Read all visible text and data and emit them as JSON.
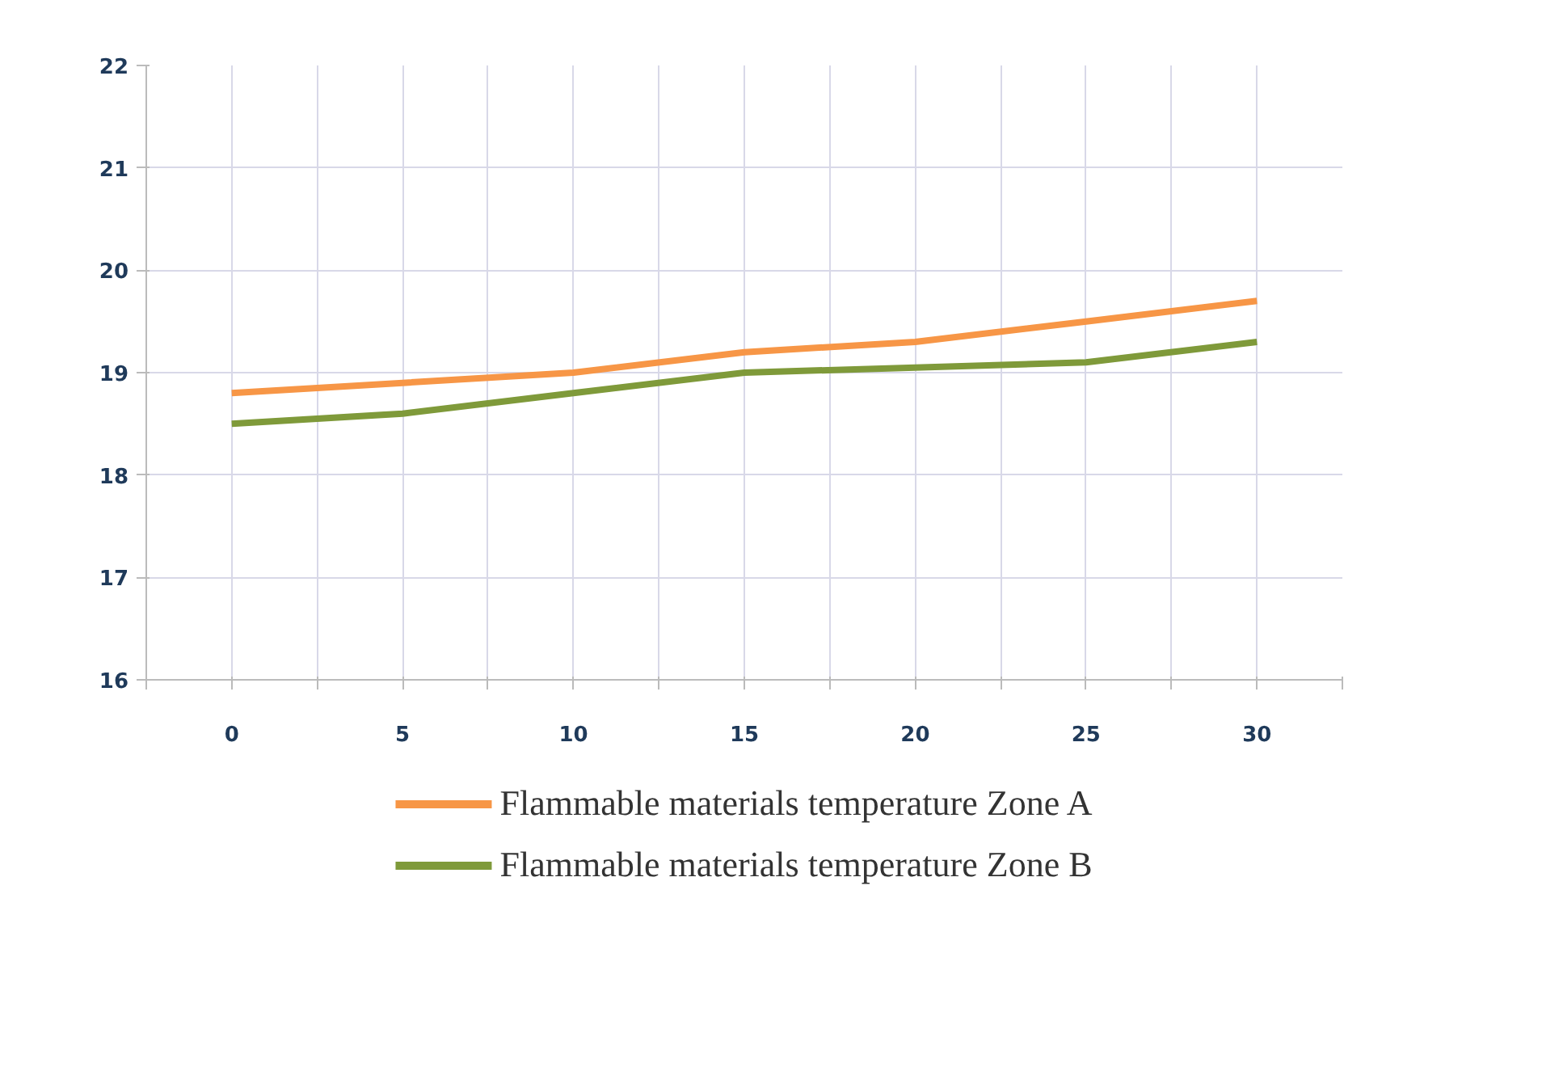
{
  "chart_data": {
    "type": "line",
    "x": [
      0,
      5,
      10,
      15,
      20,
      25,
      30
    ],
    "series": [
      {
        "name": "Flammable materials temperature Zone A",
        "color": "#f79646",
        "values": [
          18.8,
          18.9,
          19.0,
          19.2,
          19.3,
          19.5,
          19.7
        ]
      },
      {
        "name": "Flammable materials temperature Zone B",
        "color": "#7f9a3a",
        "values": [
          18.5,
          18.6,
          18.8,
          19.0,
          19.05,
          19.1,
          19.3
        ]
      }
    ],
    "xlim": [
      -2.5,
      32.5
    ],
    "xticks": [
      {
        "value": -2.5,
        "label": null
      },
      0,
      {
        "value": 2.5,
        "label": null
      },
      5,
      {
        "value": 7.5,
        "label": null
      },
      10,
      {
        "value": 12.5,
        "label": null
      },
      15,
      {
        "value": 17.5,
        "label": null
      },
      20,
      {
        "value": 22.5,
        "label": null
      },
      25,
      {
        "value": 27.5,
        "label": null
      },
      30,
      {
        "value": 32.5,
        "label": null
      }
    ],
    "ylim": [
      16,
      22
    ],
    "yticks": [
      16,
      17,
      18,
      19,
      20,
      21,
      22
    ],
    "grid": true,
    "legend": "bottom",
    "marker": "none",
    "line_style": "solid"
  }
}
